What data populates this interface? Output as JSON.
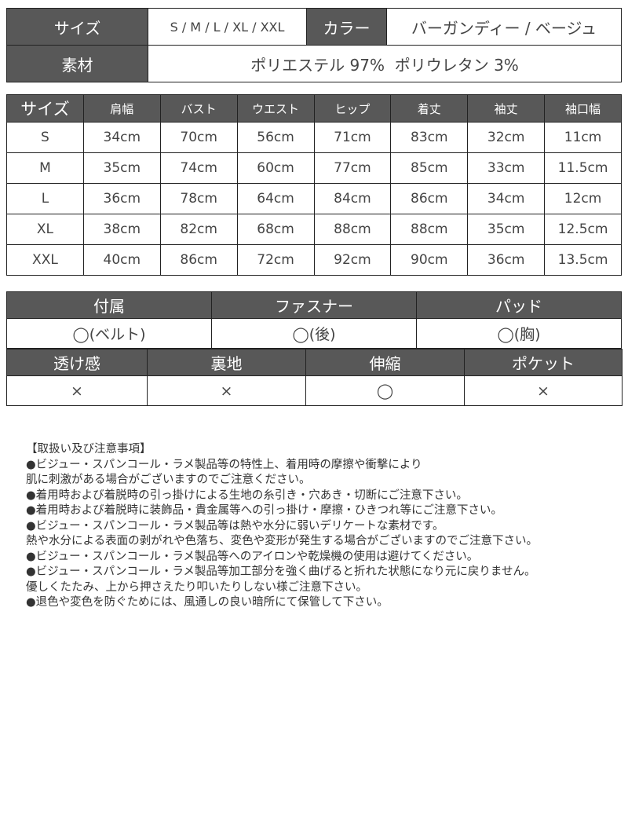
{
  "spec": {
    "size_label": "サイズ",
    "size_value": "S / M / L / XL / XXL",
    "color_label": "カラー",
    "color_value": "バーガンディー / ベージュ",
    "material_label": "素材",
    "material_value": "ポリエステル 97%  ポリウレタン 3%"
  },
  "size_table": {
    "headers": [
      "サイズ",
      "肩幅",
      "バスト",
      "ウエスト",
      "ヒップ",
      "着丈",
      "袖丈",
      "袖口幅"
    ],
    "rows": [
      [
        "S",
        "34cm",
        "70cm",
        "56cm",
        "71cm",
        "83cm",
        "32cm",
        "11cm"
      ],
      [
        "M",
        "35cm",
        "74cm",
        "60cm",
        "77cm",
        "85cm",
        "33cm",
        "11.5cm"
      ],
      [
        "L",
        "36cm",
        "78cm",
        "64cm",
        "84cm",
        "86cm",
        "34cm",
        "12cm"
      ],
      [
        "XL",
        "38cm",
        "82cm",
        "68cm",
        "88cm",
        "88cm",
        "35cm",
        "12.5cm"
      ],
      [
        "XXL",
        "40cm",
        "86cm",
        "72cm",
        "92cm",
        "90cm",
        "36cm",
        "13.5cm"
      ]
    ]
  },
  "features1": {
    "headers": [
      "付属",
      "ファスナー",
      "パッド"
    ],
    "values": [
      "◯(ベルト)",
      "◯(後)",
      "◯(胸)"
    ]
  },
  "features2": {
    "headers": [
      "透け感",
      "裏地",
      "伸縮",
      "ポケット"
    ],
    "values": [
      "×",
      "×",
      "◯",
      "×"
    ]
  },
  "notes": [
    "【取扱い及び注意事項】",
    "●ビジュー・スパンコール・ラメ製品等の特性上、着用時の摩擦や衝撃により",
    "肌に刺激がある場合がございますのでご注意ください。",
    "●着用時および着脱時の引っ掛けによる生地の糸引き・穴あき・切断にご注意下さい。",
    "●着用時および着脱時に装飾品・貴金属等への引っ掛け・摩擦・ひきつれ等にご注意下さい。",
    "●ビジュー・スパンコール・ラメ製品等は熱や水分に弱いデリケートな素材です。",
    "熱や水分による表面の剥がれや色落ち、変色や変形が発生する場合がございますのでご注意下さい。",
    "●ビジュー・スパンコール・ラメ製品等へのアイロンや乾燥機の使用は避けてください。",
    "●ビジュー・スパンコール・ラメ製品等加工部分を強く曲げると折れた状態になり元に戻りません。",
    "優しくたたみ、上から押さえたり叩いたりしない様ご注意下さい。",
    "●退色や変色を防ぐためには、風通しの良い暗所にて保管して下さい。"
  ]
}
